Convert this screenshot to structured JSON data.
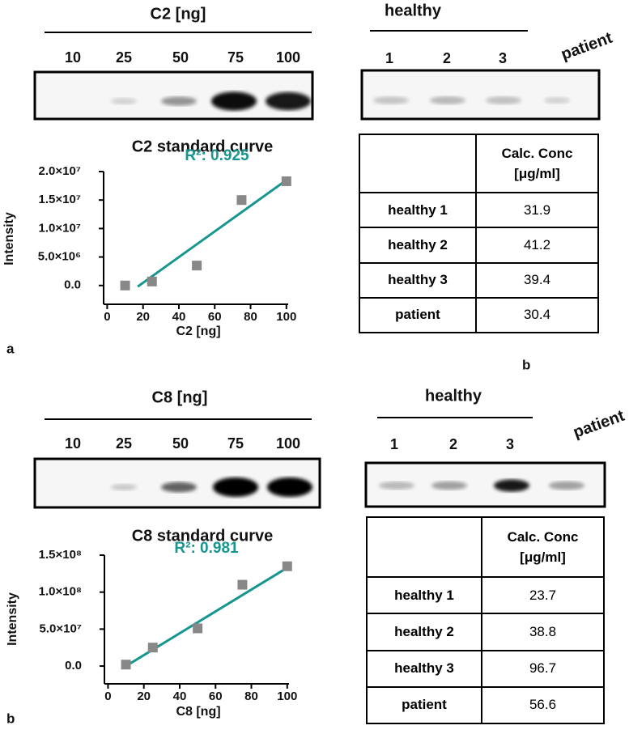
{
  "blots": [
    {
      "title": "C2 [ng]",
      "lanes": [
        "10",
        "25",
        "50",
        "75",
        "100"
      ]
    },
    {
      "title": "healthy",
      "lanes": [
        "1",
        "2",
        "3"
      ],
      "extra_lane": "patient"
    },
    {
      "title": "C8 [ng]",
      "lanes": [
        "10",
        "25",
        "50",
        "75",
        "100"
      ]
    },
    {
      "title": "healthy",
      "lanes": [
        "1",
        "2",
        "3"
      ],
      "extra_lane": "patient"
    }
  ],
  "chart_data": [
    {
      "type": "scatter",
      "title": "C2 standard curve",
      "xlabel": "C2 [ng]",
      "ylabel": "Intensity",
      "x": [
        10,
        25,
        50,
        75,
        100
      ],
      "values": [
        0,
        700000,
        3500000,
        15000000,
        18300000
      ],
      "color": "#888888",
      "fit": {
        "x": [
          17,
          100
        ],
        "values": [
          -200000,
          18500000
        ],
        "color": "#17958f"
      },
      "annotation": "R²: 0.925",
      "xlim": [
        -2,
        101
      ],
      "ylim": [
        -3300000,
        20000000
      ],
      "xticks": [
        0,
        20,
        40,
        60,
        80,
        100
      ],
      "yticks": [
        {
          "value": 0,
          "label": "0.0"
        },
        {
          "value": 5000000,
          "label": "5.0×10⁶"
        },
        {
          "value": 10000000,
          "label": "1.0×10⁷"
        },
        {
          "value": 15000000,
          "label": "1.5×10⁷"
        },
        {
          "value": 20000000,
          "label": "2.0×10⁷"
        }
      ]
    },
    {
      "type": "scatter",
      "title": "C8 standard curve",
      "xlabel": "C8 [ng]",
      "ylabel": "Intensity",
      "x": [
        10,
        25,
        50,
        75,
        100
      ],
      "values": [
        2000000,
        25000000,
        51000000,
        110000000,
        135000000
      ],
      "color": "#888888",
      "fit": {
        "x": [
          10,
          100
        ],
        "values": [
          0,
          133000000
        ],
        "color": "#17958f"
      },
      "annotation": "R²: 0.981",
      "xlim": [
        -2,
        101
      ],
      "ylim": [
        -24000000,
        150000000
      ],
      "xticks": [
        0,
        20,
        40,
        60,
        80,
        100
      ],
      "yticks": [
        {
          "value": 0,
          "label": "0.0"
        },
        {
          "value": 50000000,
          "label": "5.0×10⁷"
        },
        {
          "value": 100000000,
          "label": "1.0×10⁸"
        },
        {
          "value": 150000000,
          "label": "1.5×10⁸"
        }
      ]
    }
  ],
  "tables": [
    {
      "header": "Calc. Conc\n[μg/ml]",
      "rows": [
        [
          "healthy 1",
          "31.9"
        ],
        [
          "healthy 2",
          "41.2"
        ],
        [
          "healthy 3",
          "39.4"
        ],
        [
          "patient",
          "30.4"
        ]
      ]
    },
    {
      "header": "Calc. Conc\n[μg/ml]",
      "rows": [
        [
          "healthy 1",
          "23.7"
        ],
        [
          "healthy 2",
          "38.8"
        ],
        [
          "healthy 3",
          "96.7"
        ],
        [
          "patient",
          "56.6"
        ]
      ]
    }
  ],
  "panel_labels": [
    "a",
    "b",
    "b"
  ]
}
